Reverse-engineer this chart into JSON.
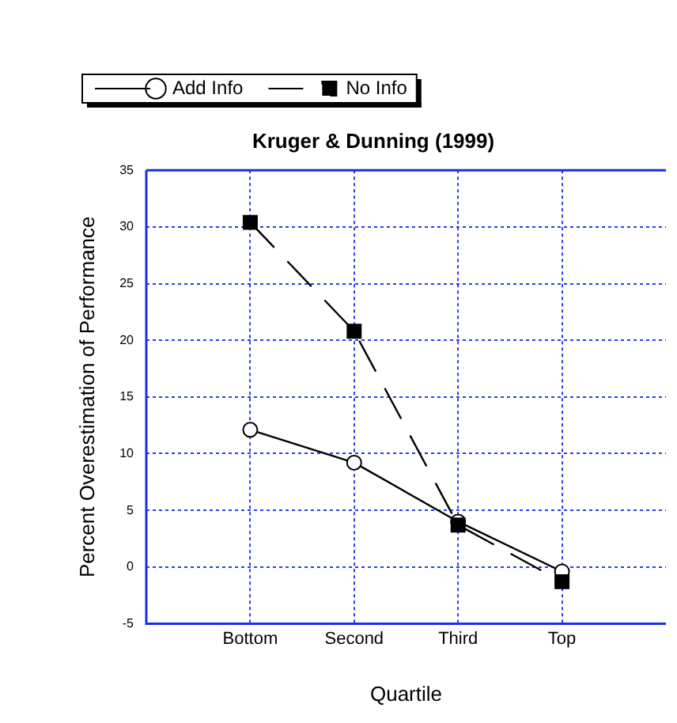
{
  "chart_data": {
    "type": "line",
    "title": "Kruger & Dunning (1999)",
    "xlabel": "Quartile",
    "ylabel": "Percent Overestimation of Performance",
    "categories": [
      "Bottom",
      "Second",
      "Third",
      "Top"
    ],
    "series": [
      {
        "name": "Add Info",
        "color": "#000000",
        "marker": "circle",
        "line_style": "solid",
        "values": [
          12.1,
          9.2,
          4.0,
          -0.4
        ]
      },
      {
        "name": "No Info",
        "color": "#000000",
        "marker": "square",
        "line_style": "dashed",
        "values": [
          30.4,
          20.8,
          3.7,
          -1.3
        ]
      }
    ],
    "ylim": [
      -5,
      35
    ],
    "yticks": [
      -5,
      0,
      5,
      10,
      15,
      20,
      25,
      30,
      35
    ],
    "grid": true,
    "legend": "top left"
  }
}
